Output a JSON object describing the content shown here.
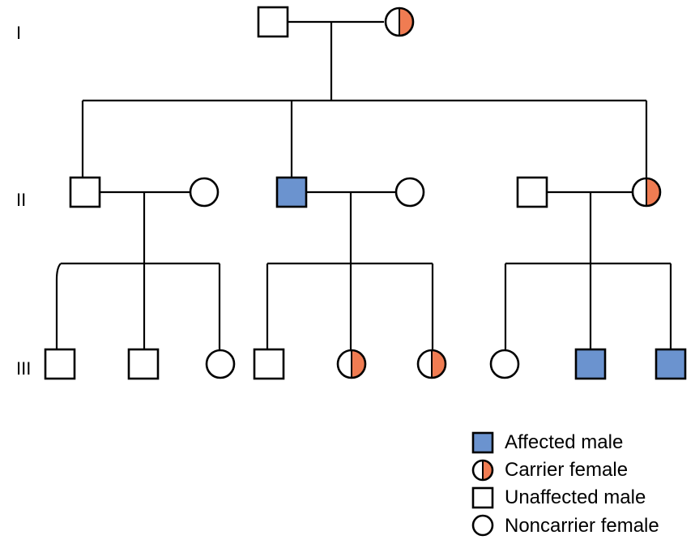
{
  "colors": {
    "affected": "#6b93cf",
    "carrier": "#f07c52",
    "unaffected": "#ffffff",
    "line": "#000000"
  },
  "generations": [
    {
      "label": "I"
    },
    {
      "label": "II"
    },
    {
      "label": "III"
    }
  ],
  "individuals": {
    "I": [
      {
        "id": "I-1",
        "sex": "male",
        "status": "unaffected"
      },
      {
        "id": "I-2",
        "sex": "female",
        "status": "carrier"
      }
    ],
    "II": [
      {
        "id": "II-1",
        "sex": "male",
        "status": "unaffected"
      },
      {
        "id": "II-2",
        "sex": "female",
        "status": "noncarrier"
      },
      {
        "id": "II-3",
        "sex": "male",
        "status": "affected"
      },
      {
        "id": "II-4",
        "sex": "female",
        "status": "noncarrier"
      },
      {
        "id": "II-5",
        "sex": "male",
        "status": "unaffected"
      },
      {
        "id": "II-6",
        "sex": "female",
        "status": "carrier"
      }
    ],
    "III": [
      {
        "id": "III-1",
        "sex": "male",
        "status": "unaffected"
      },
      {
        "id": "III-2",
        "sex": "male",
        "status": "unaffected"
      },
      {
        "id": "III-3",
        "sex": "female",
        "status": "noncarrier"
      },
      {
        "id": "III-4",
        "sex": "male",
        "status": "unaffected"
      },
      {
        "id": "III-5",
        "sex": "female",
        "status": "carrier"
      },
      {
        "id": "III-6",
        "sex": "female",
        "status": "carrier"
      },
      {
        "id": "III-7",
        "sex": "female",
        "status": "noncarrier"
      },
      {
        "id": "III-8",
        "sex": "male",
        "status": "affected"
      },
      {
        "id": "III-9",
        "sex": "male",
        "status": "affected"
      }
    ]
  },
  "legend": [
    {
      "symbol": "affected-male",
      "label": "Affected male"
    },
    {
      "symbol": "carrier-female",
      "label": "Carrier female"
    },
    {
      "symbol": "unaffected-male",
      "label": "Unaffected male"
    },
    {
      "symbol": "noncarrier-female",
      "label": "Noncarrier female"
    }
  ]
}
